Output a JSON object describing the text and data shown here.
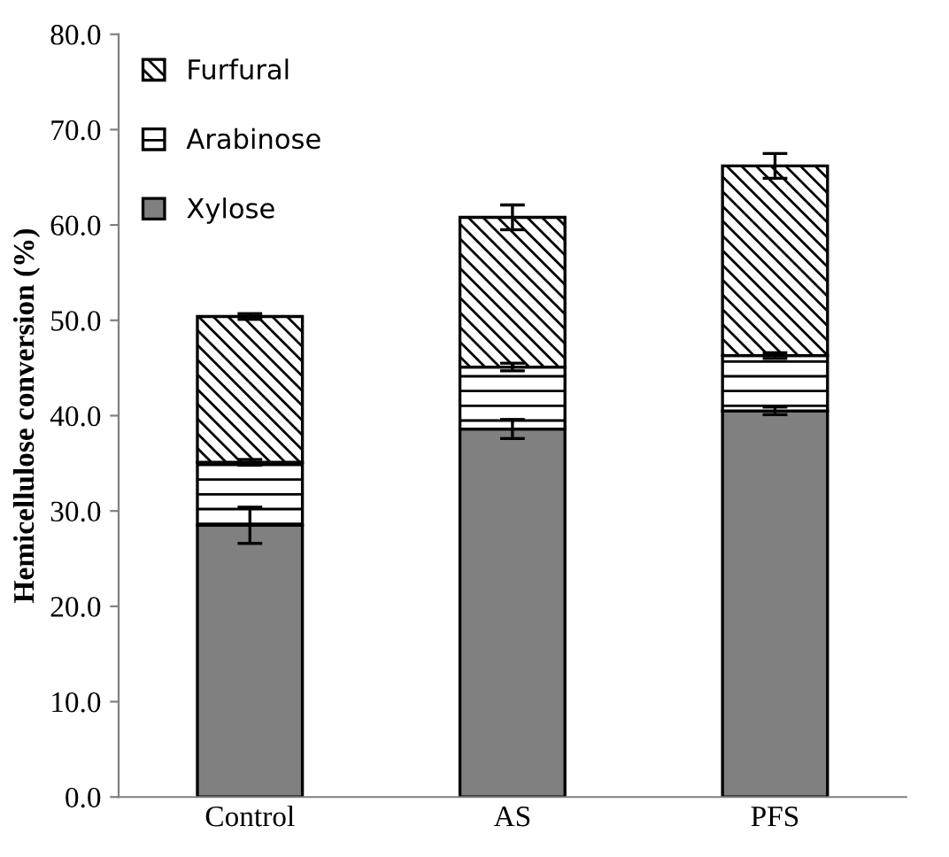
{
  "chart_data": {
    "type": "bar",
    "stacked": true,
    "ylabel": "Hemicellulose conversion (%)",
    "categories": [
      "Control",
      "AS",
      "PFS"
    ],
    "series": [
      {
        "name": "Xylose",
        "color": "#808080",
        "values": [
          28.5,
          38.6,
          40.5
        ],
        "errors": [
          1.9,
          1.0,
          0.4
        ]
      },
      {
        "name": "Arabinose",
        "color": "#000000",
        "values": [
          6.6,
          6.5,
          5.8
        ],
        "errors": [
          0.3,
          0.4,
          0.3
        ]
      },
      {
        "name": "Furfural",
        "color": "#000000",
        "values": [
          15.3,
          15.7,
          19.9
        ],
        "errors": [
          0.3,
          1.3,
          1.3
        ]
      }
    ],
    "ylim": [
      0,
      80
    ],
    "yticks": [
      {
        "value": 0,
        "label": "0.0"
      },
      {
        "value": 10,
        "label": "10.0"
      },
      {
        "value": 20,
        "label": "20.0"
      },
      {
        "value": 30,
        "label": "30.0"
      },
      {
        "value": 40,
        "label": "40.0"
      },
      {
        "value": 50,
        "label": "50.0"
      },
      {
        "value": 60,
        "label": "60.0"
      },
      {
        "value": 70,
        "label": "70.0"
      },
      {
        "value": 80,
        "label": "80.0"
      }
    ],
    "grid": false,
    "legend": "top left"
  }
}
